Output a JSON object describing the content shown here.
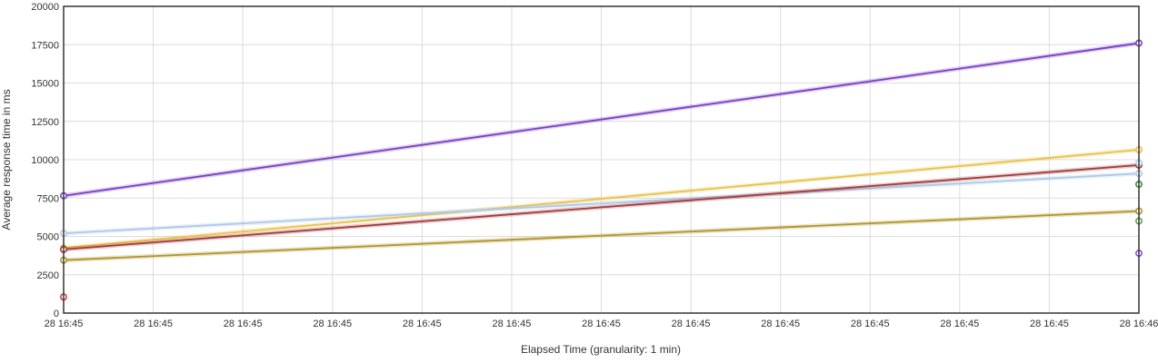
{
  "chart_data": {
    "type": "line",
    "title": "",
    "xlabel": "Elapsed Time (granularity: 1 min)",
    "ylabel": "Average response time in ms",
    "ylim": [
      0,
      20000
    ],
    "yticks": [
      0,
      2500,
      5000,
      7500,
      10000,
      12500,
      15000,
      17500,
      20000
    ],
    "xticks": [
      "28 16:45",
      "28 16:45",
      "28 16:45",
      "28 16:45",
      "28 16:45",
      "28 16:45",
      "28 16:45",
      "28 16:45",
      "28 16:45",
      "28 16:45",
      "28 16:45",
      "28 16:45",
      "28 16:46"
    ],
    "x": [
      0,
      1
    ],
    "grid": true,
    "legend": "none",
    "series": [
      {
        "color": "#7b3fc4",
        "values": [
          7650,
          17600
        ]
      },
      {
        "color": "#e8c24a",
        "values": [
          4250,
          10650
        ]
      },
      {
        "color": "#aec9e8",
        "values": [
          5200,
          9100
        ]
      },
      {
        "color": "#a33a3a",
        "values": [
          4150,
          9650
        ]
      },
      {
        "color": "#b0952a",
        "values": [
          3450,
          6650
        ]
      },
      {
        "color": "#b8cde6",
        "values": [
          null,
          9800
        ]
      },
      {
        "color": "#3f8a3f",
        "values": [
          null,
          8400
        ]
      },
      {
        "color": "#55a855",
        "values": [
          null,
          6000
        ]
      },
      {
        "color": "#8a4fd0",
        "values": [
          null,
          3900
        ]
      },
      {
        "color": "#c94444",
        "values": [
          1050,
          null
        ]
      }
    ]
  }
}
